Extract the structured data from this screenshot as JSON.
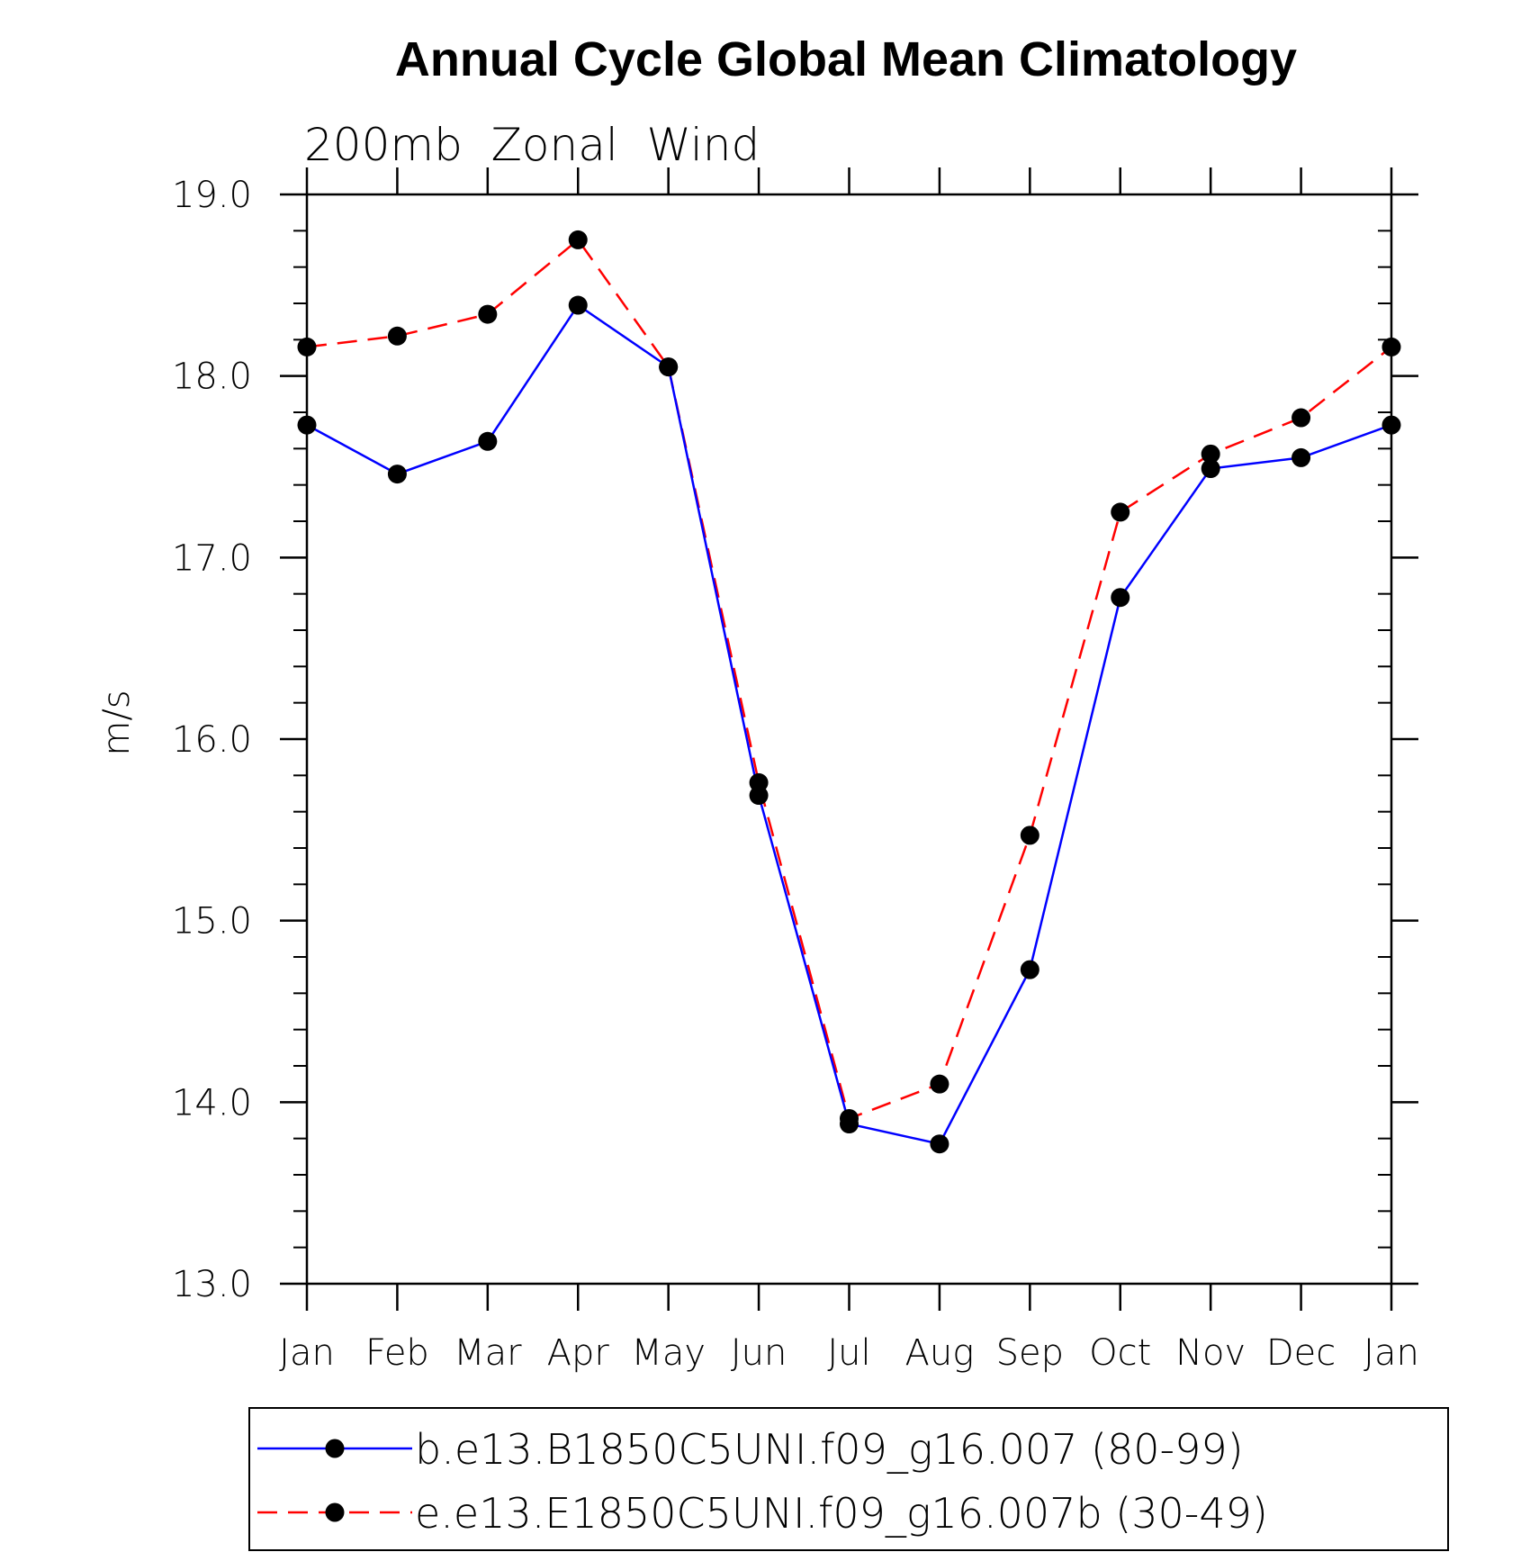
{
  "chart_data": {
    "type": "line",
    "title": "Annual Cycle Global Mean Climatology",
    "subtitle": "200mb  Zonal  Wind",
    "xlabel": "",
    "ylabel": "m/s",
    "categories": [
      "Jan",
      "Feb",
      "Mar",
      "Apr",
      "May",
      "Jun",
      "Jul",
      "Aug",
      "Sep",
      "Oct",
      "Nov",
      "Dec",
      "Jan"
    ],
    "ylim": [
      13.0,
      19.0
    ],
    "yticks": [
      "13.0",
      "14.0",
      "15.0",
      "16.0",
      "17.0",
      "18.0",
      "19.0"
    ],
    "grid": false,
    "legend_position": "bottom",
    "series": [
      {
        "name": "b.e13.B1850C5UNI.f09_g16.007 (80-99)",
        "color": "#0000ff",
        "dash": "solid",
        "values": [
          17.73,
          17.46,
          17.64,
          18.39,
          18.05,
          15.69,
          13.88,
          13.77,
          14.73,
          16.78,
          17.49,
          17.55,
          17.73
        ]
      },
      {
        "name": "e.e13.E1850C5UNI.f09_g16.007b (30-49)",
        "color": "#ff0000",
        "dash": "dashed",
        "values": [
          18.16,
          18.22,
          18.34,
          18.75,
          18.05,
          15.76,
          13.91,
          14.1,
          15.47,
          17.25,
          17.57,
          17.77,
          18.16
        ]
      }
    ]
  }
}
